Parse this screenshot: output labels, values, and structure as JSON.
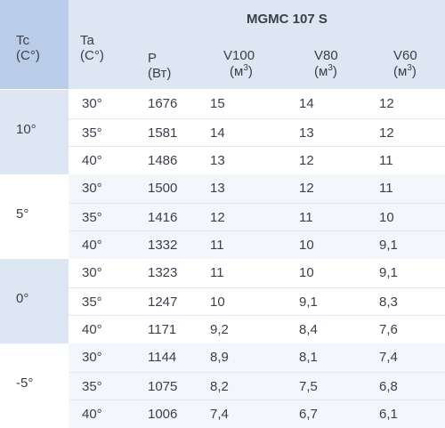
{
  "header": {
    "tc_label": "Tc",
    "tc_unit": "(C°)",
    "ta_label": "Ta",
    "ta_unit": "(C°)",
    "model": "MGMC 107 S",
    "p_label": "P",
    "p_unit": "(Вт)",
    "v100_label": "V100",
    "v80_label": "V80",
    "v60_label": "V60",
    "v_unit_base": "(м",
    "v_unit_exp": "3",
    "v_unit_close": ")"
  },
  "groups": [
    {
      "tc": "10°",
      "rows": [
        {
          "ta": "30°",
          "p": "1676",
          "v100": "15",
          "v80": "14",
          "v60": "12"
        },
        {
          "ta": "35°",
          "p": "1581",
          "v100": "14",
          "v80": "13",
          "v60": "12"
        },
        {
          "ta": "40°",
          "p": "1486",
          "v100": "13",
          "v80": "12",
          "v60": "11"
        }
      ]
    },
    {
      "tc": "5°",
      "rows": [
        {
          "ta": "30°",
          "p": "1500",
          "v100": "13",
          "v80": "12",
          "v60": "11"
        },
        {
          "ta": "35°",
          "p": "1416",
          "v100": "12",
          "v80": "11",
          "v60": "10"
        },
        {
          "ta": "40°",
          "p": "1332",
          "v100": "11",
          "v80": "10",
          "v60": "9,1"
        }
      ]
    },
    {
      "tc": "0°",
      "rows": [
        {
          "ta": "30°",
          "p": "1323",
          "v100": "11",
          "v80": "10",
          "v60": "9,1"
        },
        {
          "ta": "35°",
          "p": "1247",
          "v100": "10",
          "v80": "9,1",
          "v60": "8,3"
        },
        {
          "ta": "40°",
          "p": "1171",
          "v100": "9,2",
          "v80": "8,4",
          "v60": "7,6"
        }
      ]
    },
    {
      "tc": "-5°",
      "rows": [
        {
          "ta": "30°",
          "p": "1144",
          "v100": "8,9",
          "v80": "8,1",
          "v60": "7,4"
        },
        {
          "ta": "35°",
          "p": "1075",
          "v100": "8,2",
          "v80": "7,5",
          "v60": "6,8"
        },
        {
          "ta": "40°",
          "p": "1006",
          "v100": "7,4",
          "v80": "6,7",
          "v60": "6,1"
        }
      ]
    }
  ]
}
